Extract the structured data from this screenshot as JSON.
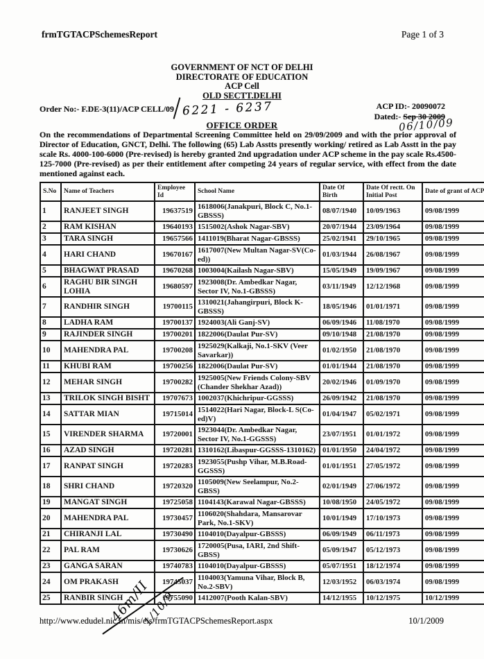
{
  "page": {
    "report_name": "frmTGTACPSchemesReport",
    "page_indicator": "Page 1 of 3",
    "footer_url": "http://www.edudel.nic.in/mis/eis/frmTGTACPSchemesReport.aspx",
    "footer_date": "10/1/2009"
  },
  "letterhead": {
    "line1": "GOVERNMENT OF NCT OF DELHI",
    "line2": "DIRECTORATE OF EDUCATION",
    "line3": "ACP Cell",
    "line4": "OLD SECTT.DELHI"
  },
  "order": {
    "order_no_label": "Order No:- F.DE-3(11)/ACP CELL/09",
    "acp_id": "ACP ID:- 20090072",
    "dated_label": "Dated:- ",
    "dated_value": "Sep 30 2009",
    "title": "OFFICE ORDER",
    "body": "On the recommendations of Departmental Screening Committee held on 29/09/2009 and with the prior approval of Director of Education, GNCT, Delhi. The following (65) Lab Asstts presently working/ retired as Lab Asstt in the pay scale Rs. 4000-100-6000 (Pre-revised) is hereby granted 2nd upgradation under ACP scheme in the pay scale Rs.4500-125-7000 (Pre-revised) as per their entitlement after competing 24 years of regular service, with effect from the date mentioned against each."
  },
  "handwriting": {
    "order_number": "6221 - 6237",
    "corrected_date": "06/10/09",
    "scribble_line1": "46m/II",
    "scribble_line2": "1/10/9"
  },
  "table": {
    "headers": [
      "S.No",
      "Name of Teachers",
      "Employee Id",
      "School Name",
      "Date Of Birth",
      "Date Of rectt. On Initial Post",
      "Date of grant of ACP"
    ],
    "rows": [
      [
        "1",
        "RANJEET SINGH",
        "19637519",
        "1618006(Janakpuri, Block C, No.1-GBSSS)",
        "08/07/1940",
        "10/09/1963",
        "09/08/1999"
      ],
      [
        "2",
        "RAM KISHAN",
        "19640193",
        "1515002(Ashok Nagar-SBV)",
        "20/07/1944",
        "23/09/1964",
        "09/08/1999"
      ],
      [
        "3",
        "TARA SINGH",
        "19657566",
        "1411019(Bharat Nagar-GBSSS)",
        "25/02/1941",
        "29/10/1965",
        "09/08/1999"
      ],
      [
        "4",
        "HARI CHAND",
        "19670167",
        "1617007(New Multan Nagar-SV(Co-ed))",
        "01/03/1944",
        "26/08/1967",
        "09/08/1999"
      ],
      [
        "5",
        "BHAGWAT PRASAD",
        "19670268",
        "1003004(Kailash Nagar-SBV)",
        "15/05/1949",
        "19/09/1967",
        "09/08/1999"
      ],
      [
        "6",
        "RAGHU BIR SINGH LOHIA",
        "19680597",
        "1923008(Dr. Ambedkar Nagar, Sector IV, No.1-GBSSS)",
        "03/11/1949",
        "12/12/1968",
        "09/08/1999"
      ],
      [
        "7",
        "RANDHIR SINGH",
        "19700115",
        "1310021(Jahangirpuri, Block K-GBSSS)",
        "18/05/1946",
        "01/01/1971",
        "09/08/1999"
      ],
      [
        "8",
        "LADHA RAM",
        "19700137",
        "1924003(Ali Ganj-SV)",
        "06/09/1946",
        "11/08/1970",
        "09/08/1999"
      ],
      [
        "9",
        "RAJINDER SINGH",
        "19700201",
        "1822006(Daulat Pur-SV)",
        "09/10/1948",
        "21/08/1970",
        "09/08/1999"
      ],
      [
        "10",
        "MAHENDRA PAL",
        "19700208",
        "1925029(Kalkaji, No.1-SKV (Veer Savarkar))",
        "01/02/1950",
        "21/08/1970",
        "09/08/1999"
      ],
      [
        "11",
        "KHUBI RAM",
        "19700256",
        "1822006(Daulat Pur-SV)",
        "01/01/1944",
        "21/08/1970",
        "09/08/1999"
      ],
      [
        "12",
        "MEHAR SINGH",
        "19700282",
        "1925005(New Friends Colony-SBV (Chander Shekhar Azad))",
        "20/02/1946",
        "01/09/1970",
        "09/08/1999"
      ],
      [
        "13",
        "TRILOK SINGH BISHT",
        "19707673",
        "1002037(Khichripur-GGSSS)",
        "26/09/1942",
        "21/08/1970",
        "09/08/1999"
      ],
      [
        "14",
        "SATTAR MIAN",
        "19715014",
        "1514022(Hari Nagar, Block-L S(Co-ed)V)",
        "01/04/1947",
        "05/02/1971",
        "09/08/1999"
      ],
      [
        "15",
        "VIRENDER SHARMA",
        "19720001",
        "1923044(Dr. Ambedkar Nagar, Sector IV, No.1-GGSSS)",
        "23/07/1951",
        "01/01/1972",
        "09/08/1999"
      ],
      [
        "16",
        "AZAD SINGH",
        "19720281",
        "1310162(Libaspur-GGSSS-1310162)",
        "01/01/1950",
        "24/04/1972",
        "09/08/1999"
      ],
      [
        "17",
        "RANPAT SINGH",
        "19720283",
        "1923055(Pushp Vihar, M.B.Road-GGSSS)",
        "01/01/1951",
        "27/05/1972",
        "09/08/1999"
      ],
      [
        "18",
        "SHRI CHAND",
        "19720320",
        "1105009(New Seelampur, No.2-GBSS)",
        "02/01/1949",
        "27/06/1972",
        "09/08/1999"
      ],
      [
        "19",
        "MANGAT SINGH",
        "19725058",
        "1104143(Karawal Nagar-GBSSS)",
        "10/08/1950",
        "24/05/1972",
        "09/08/1999"
      ],
      [
        "20",
        "MAHENDRA PAL",
        "19730457",
        "1106020(Shahdara, Mansarovar Park, No.1-SKV)",
        "10/01/1949",
        "17/10/1973",
        "09/08/1999"
      ],
      [
        "21",
        "CHIRANJI LAL",
        "19730490",
        "1104010(Dayalpur-GBSSS)",
        "06/09/1949",
        "06/11/1973",
        "09/08/1999"
      ],
      [
        "22",
        "PAL RAM",
        "19730626",
        "1720005(Pusa, IARI, 2nd Shift-GBSS)",
        "05/09/1947",
        "05/12/1973",
        "09/08/1999"
      ],
      [
        "23",
        "GANGA SARAN",
        "19740783",
        "1104010(Dayalpur-GBSSS)",
        "05/07/1951",
        "18/12/1974",
        "09/08/1999"
      ],
      [
        "24",
        "OM PRAKASH",
        "19745037",
        "1104003(Yamuna Vihar, Block B, No.2-SBV)",
        "12/03/1952",
        "06/03/1974",
        "09/08/1999"
      ],
      [
        "25",
        "RANBIR SINGH",
        "19755090",
        "1412007(Pooth Kalan-SBV)",
        "14/12/1955",
        "10/12/1975",
        "10/12/1999"
      ]
    ]
  }
}
